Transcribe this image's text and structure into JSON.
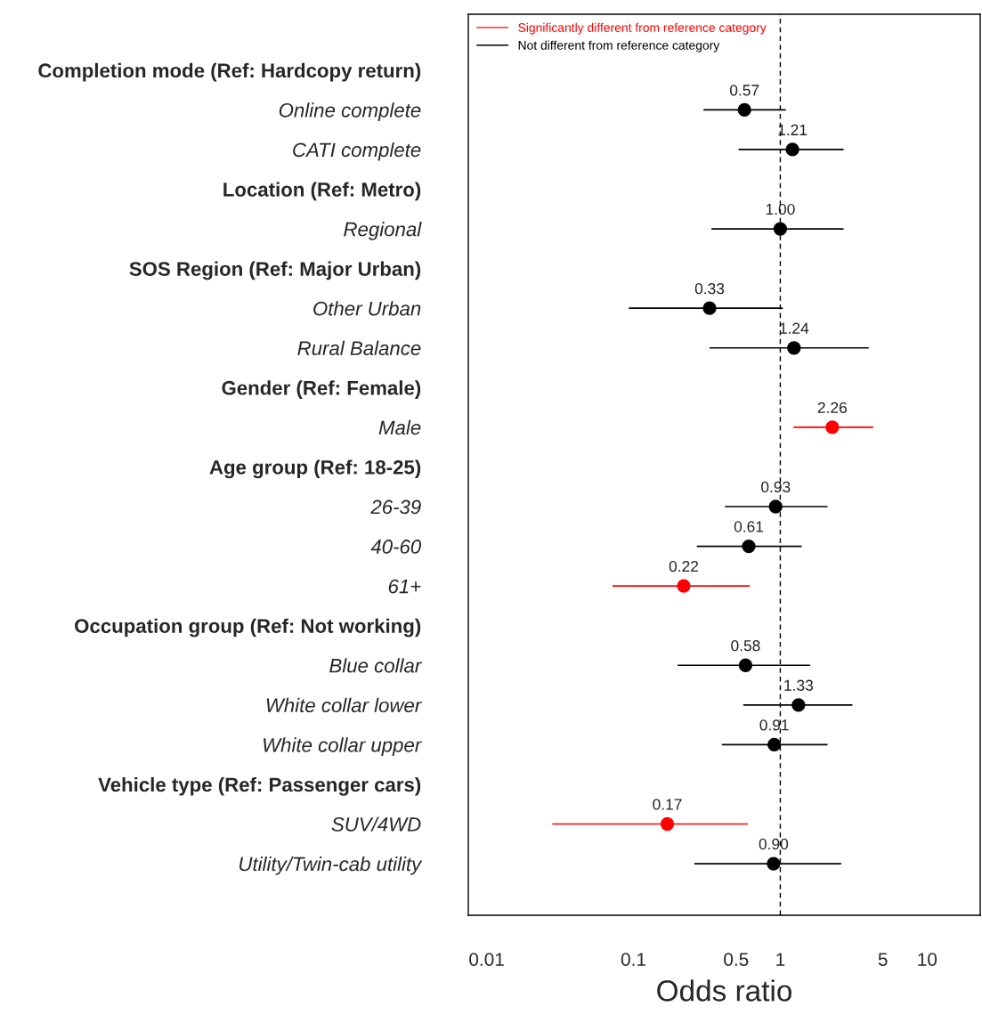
{
  "chart_data": {
    "type": "scatter",
    "orientation": "horizontal",
    "xlabel": "Odds ratio",
    "log": "x",
    "xlim": [
      0.0075,
      23
    ],
    "xticks": [
      0.01,
      0.1,
      0.5,
      1,
      5,
      10
    ],
    "grid": false,
    "legend": "top left",
    "marker": "circle",
    "data_labels": true,
    "categories": [
      "Completion mode (Ref: Hardcopy return)",
      "Online complete",
      "CATI complete",
      "Location (Ref: Metro)",
      "Regional",
      "SOS Region (Ref: Major Urban)",
      "Other Urban",
      "Rural Balance",
      "Gender (Ref: Female)",
      "Male",
      "Age group (Ref: 18-25)",
      "26-39",
      "40-60",
      "61+",
      "Occupation group (Ref: Not working)",
      "Blue collar",
      "White collar lower",
      "White collar upper",
      "Vehicle type (Ref: Passenger cars)",
      "SUV/4WD",
      "Utility/Twin-cab utility"
    ],
    "ref_lines": [
      {
        "axis": "x",
        "value": 1,
        "color": "#000000",
        "line_style": "dashed"
      }
    ],
    "series": [
      {
        "name": "Significantly different from reference category",
        "color": "#ff0000",
        "values": [
          null,
          null,
          null,
          null,
          null,
          null,
          null,
          null,
          null,
          2.26,
          null,
          null,
          null,
          0.22,
          null,
          null,
          null,
          null,
          null,
          0.17,
          null
        ],
        "errors": [
          null,
          null,
          null,
          null,
          null,
          null,
          null,
          null,
          null,
          [
            1.23,
            4.3
          ],
          null,
          null,
          null,
          [
            0.072,
            0.62
          ],
          null,
          null,
          null,
          null,
          null,
          [
            0.028,
            0.6
          ],
          null
        ]
      },
      {
        "name": "Not different from reference category",
        "color": "#000000",
        "values": [
          null,
          0.57,
          1.21,
          null,
          1.0,
          null,
          0.33,
          1.24,
          null,
          null,
          null,
          0.93,
          0.61,
          null,
          null,
          0.58,
          1.33,
          0.91,
          null,
          null,
          0.9
        ],
        "value_labels": [
          null,
          "0.57",
          "1.21",
          null,
          "1.00",
          null,
          "0.33",
          "1.24",
          null,
          null,
          null,
          "0.93",
          "0.61",
          null,
          null,
          "0.58",
          "1.33",
          "0.91",
          null,
          null,
          "0.90"
        ],
        "errors": [
          null,
          [
            0.3,
            1.09
          ],
          [
            0.52,
            2.7
          ],
          null,
          [
            0.34,
            2.7
          ],
          null,
          [
            0.093,
            1.04
          ],
          [
            0.33,
            4.0
          ],
          null,
          null,
          null,
          [
            0.42,
            2.1
          ],
          [
            0.27,
            1.4
          ],
          null,
          null,
          [
            0.2,
            1.6
          ],
          [
            0.56,
            3.1
          ],
          [
            0.4,
            2.1
          ],
          null,
          null,
          [
            0.26,
            2.6
          ]
        ]
      }
    ]
  }
}
